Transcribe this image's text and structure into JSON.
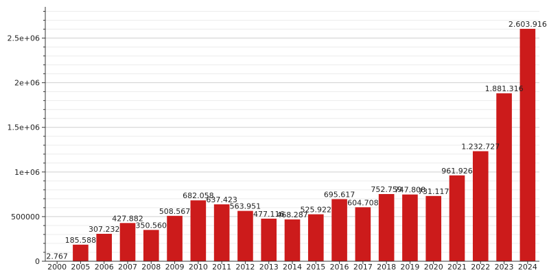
{
  "chart_data": {
    "type": "bar",
    "categories": [
      "2000",
      "2005",
      "2006",
      "2007",
      "2008",
      "2009",
      "2010",
      "2011",
      "2012",
      "2013",
      "2014",
      "2015",
      "2016",
      "2017",
      "2018",
      "2019",
      "2020",
      "2021",
      "2022",
      "2023",
      "2024"
    ],
    "values": [
      2767,
      185588,
      307232,
      427882,
      350560,
      508567,
      682058,
      637423,
      563951,
      477116,
      468287,
      525922,
      695617,
      604708,
      752759,
      747808,
      731117,
      961926,
      1232727,
      1881316,
      2603916
    ],
    "value_labels": [
      "2.767",
      "185.588",
      "307.232",
      "427.882",
      "350.560",
      "508.567",
      "682.058",
      "637.423",
      "563.951",
      "477.116",
      "468.287",
      "525.922",
      "695.617",
      "604.708",
      "752.759",
      "747.808",
      "731.117",
      "961.926",
      "1.232.727",
      "1.881.316",
      "2.603.916"
    ],
    "y_ticks": [
      0,
      500000,
      1000000,
      1500000,
      2000000,
      2500000
    ],
    "y_tick_labels": [
      "0",
      "500000",
      "1e+06",
      "1.5e+06",
      "2e+06",
      "2.5e+06"
    ],
    "ylim": [
      0,
      2850000
    ],
    "grid": true,
    "title": "",
    "xlabel": "",
    "ylabel": "",
    "colors": {
      "bar": "#cc1b1b",
      "grid_major": "#cfcfcf",
      "grid_minor": "#ececec",
      "axis": "#333333"
    }
  }
}
